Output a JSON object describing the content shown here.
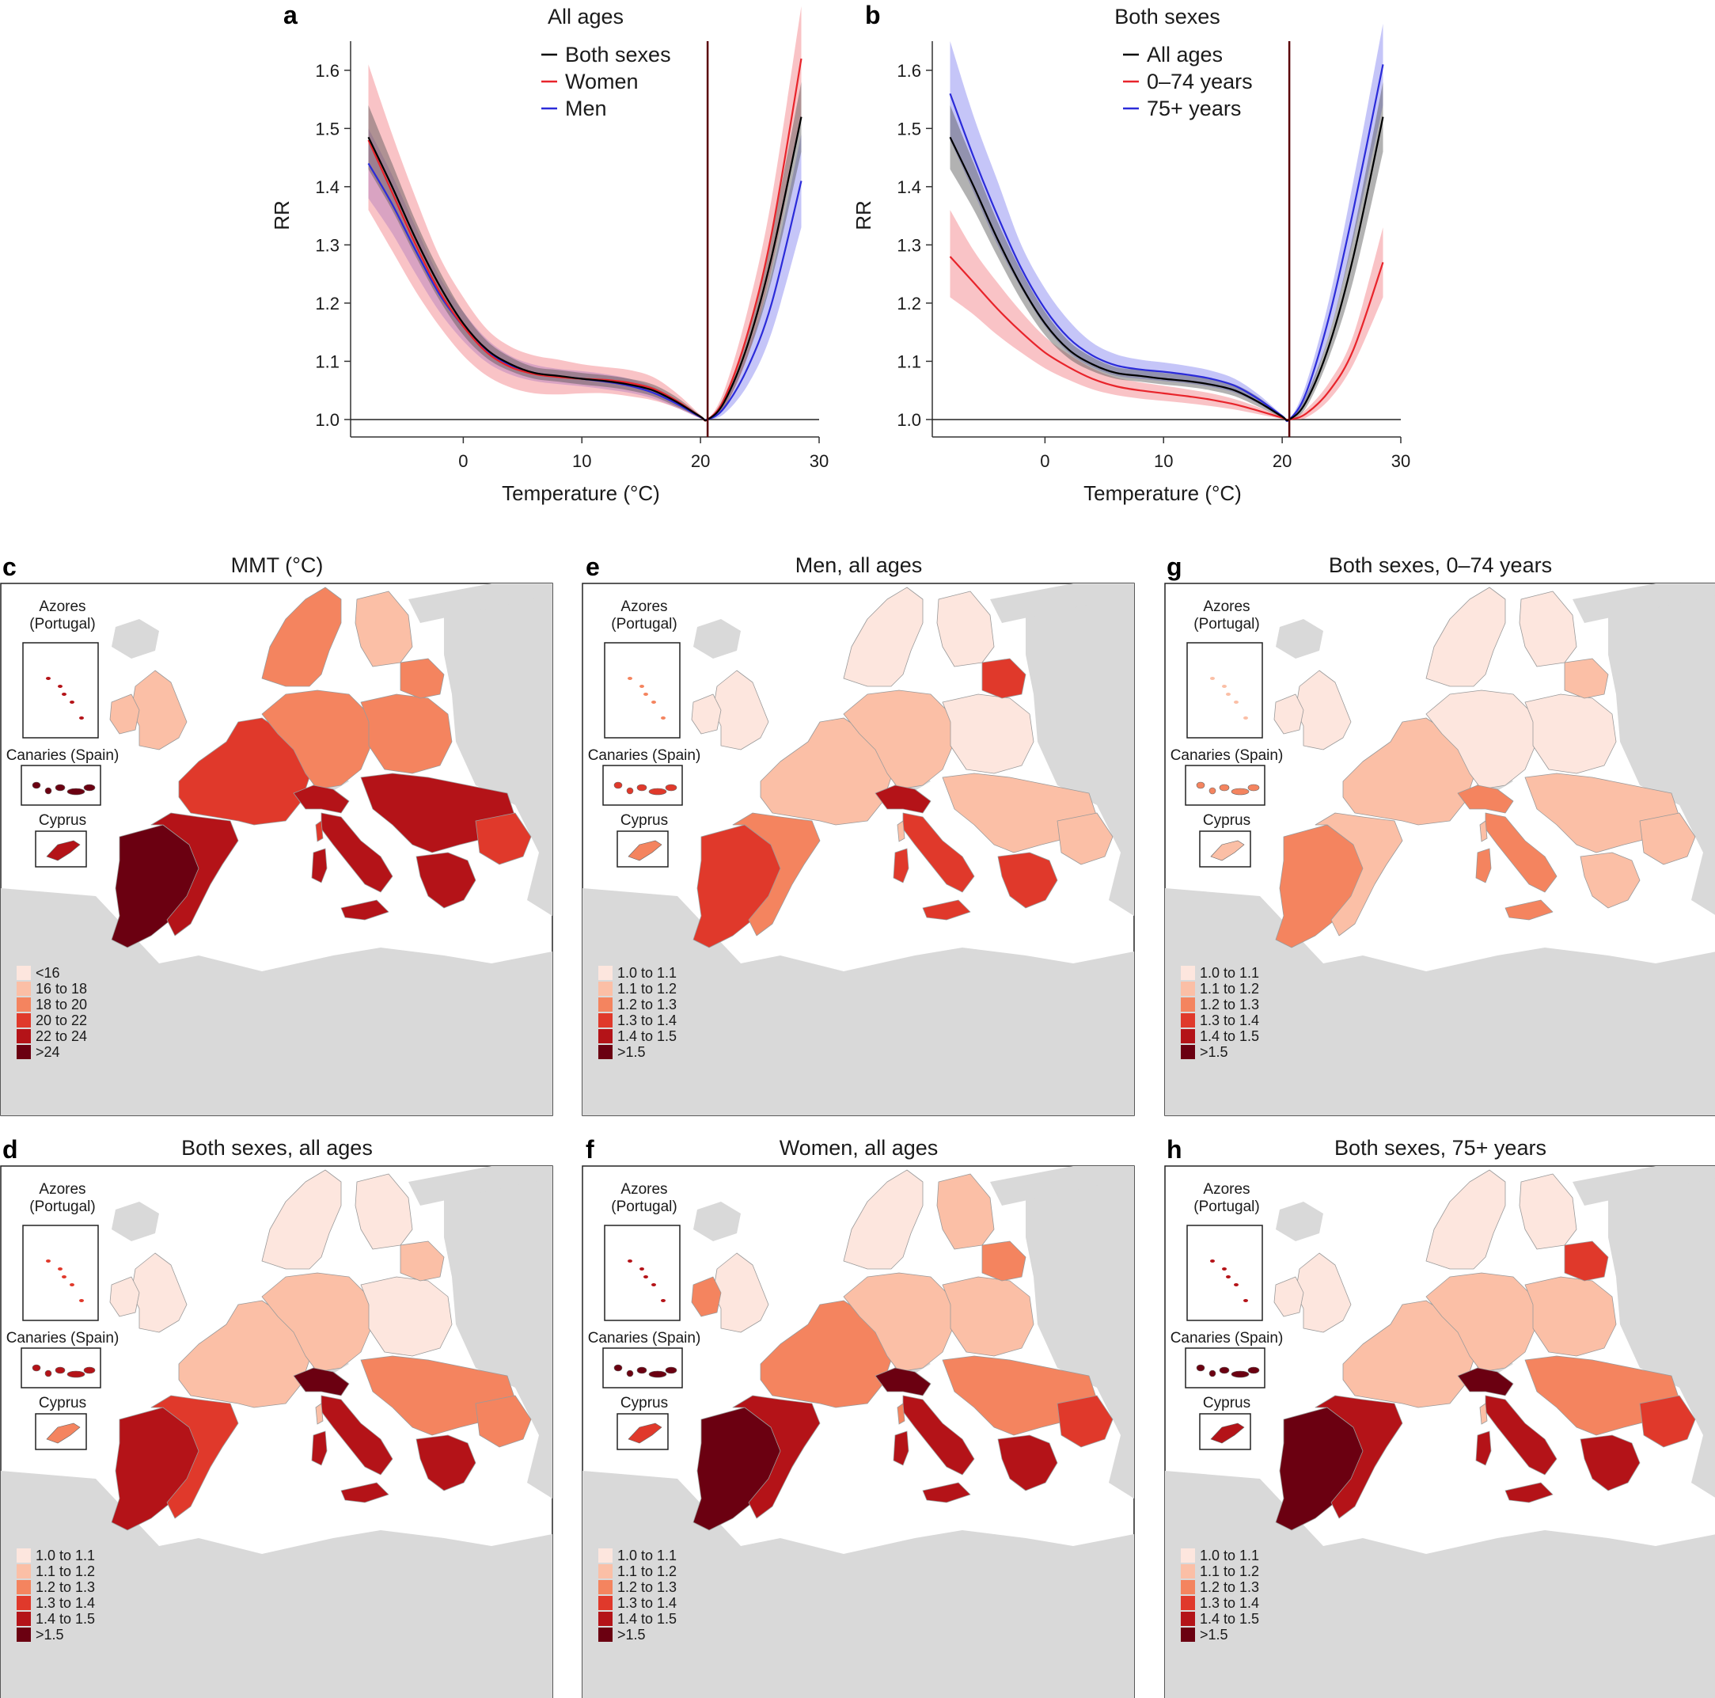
{
  "chart_data": [
    {
      "panel": "a",
      "type": "line",
      "title": "All ages",
      "xlabel": "Temperature (°C)",
      "ylabel": "RR",
      "xlim": [
        -9.5,
        30
      ],
      "ylim": [
        0.97,
        1.65
      ],
      "xticks": [
        0,
        10,
        20,
        30
      ],
      "yticks": [
        1.0,
        1.1,
        1.2,
        1.3,
        1.4,
        1.5,
        1.6
      ],
      "mmt_line": 20.6,
      "reference_line": 1.0,
      "legend_position": "top-center",
      "series": [
        {
          "name": "Both sexes",
          "color": "#000000",
          "band": "#555555",
          "x": [
            -8,
            -6,
            -4,
            -2,
            0,
            2,
            4,
            6,
            8,
            10,
            12,
            14,
            16,
            18,
            20,
            20.6,
            22,
            24,
            26,
            28.5
          ],
          "y": [
            1.485,
            1.4,
            1.31,
            1.23,
            1.165,
            1.12,
            1.095,
            1.08,
            1.075,
            1.07,
            1.066,
            1.06,
            1.05,
            1.03,
            1.005,
            1.0,
            1.03,
            1.13,
            1.28,
            1.52
          ],
          "lower": [
            1.43,
            1.36,
            1.28,
            1.205,
            1.145,
            1.105,
            1.083,
            1.07,
            1.065,
            1.06,
            1.056,
            1.05,
            1.04,
            1.022,
            1.003,
            1.0,
            1.02,
            1.11,
            1.24,
            1.46
          ],
          "upper": [
            1.54,
            1.44,
            1.34,
            1.255,
            1.185,
            1.135,
            1.107,
            1.09,
            1.085,
            1.08,
            1.076,
            1.07,
            1.06,
            1.038,
            1.007,
            1.0,
            1.04,
            1.15,
            1.32,
            1.58
          ]
        },
        {
          "name": "Women",
          "color": "#e8242b",
          "band": "#f27b80",
          "x": [
            -8,
            -6,
            -4,
            -2,
            0,
            2,
            4,
            6,
            8,
            10,
            12,
            14,
            16,
            18,
            20,
            20.6,
            22,
            24,
            26,
            28.5
          ],
          "y": [
            1.48,
            1.39,
            1.3,
            1.22,
            1.16,
            1.115,
            1.09,
            1.078,
            1.073,
            1.07,
            1.068,
            1.063,
            1.053,
            1.032,
            1.005,
            1.0,
            1.035,
            1.15,
            1.32,
            1.62
          ],
          "lower": [
            1.36,
            1.29,
            1.22,
            1.16,
            1.11,
            1.075,
            1.055,
            1.045,
            1.043,
            1.045,
            1.045,
            1.04,
            1.033,
            1.02,
            1.002,
            1.0,
            1.02,
            1.11,
            1.26,
            1.52
          ],
          "upper": [
            1.61,
            1.49,
            1.38,
            1.28,
            1.21,
            1.155,
            1.125,
            1.11,
            1.103,
            1.095,
            1.09,
            1.085,
            1.073,
            1.045,
            1.008,
            1.0,
            1.05,
            1.19,
            1.38,
            1.71
          ]
        },
        {
          "name": "Men",
          "color": "#2b2bd9",
          "band": "#7f7ff0",
          "x": [
            -8,
            -6,
            -4,
            -2,
            0,
            2,
            4,
            6,
            8,
            10,
            12,
            14,
            16,
            18,
            20,
            20.6,
            22,
            24,
            26,
            28.5
          ],
          "y": [
            1.44,
            1.37,
            1.29,
            1.215,
            1.16,
            1.118,
            1.093,
            1.08,
            1.074,
            1.07,
            1.065,
            1.058,
            1.046,
            1.027,
            1.004,
            1.0,
            1.02,
            1.09,
            1.2,
            1.41
          ],
          "lower": [
            1.38,
            1.32,
            1.25,
            1.185,
            1.135,
            1.098,
            1.077,
            1.066,
            1.061,
            1.057,
            1.052,
            1.046,
            1.036,
            1.02,
            1.002,
            1.0,
            1.01,
            1.06,
            1.15,
            1.33
          ],
          "upper": [
            1.5,
            1.42,
            1.33,
            1.245,
            1.185,
            1.138,
            1.109,
            1.094,
            1.087,
            1.083,
            1.078,
            1.07,
            1.056,
            1.034,
            1.006,
            1.0,
            1.03,
            1.12,
            1.25,
            1.49
          ]
        }
      ]
    },
    {
      "panel": "b",
      "type": "line",
      "title": "Both sexes",
      "xlabel": "Temperature (°C)",
      "ylabel": "RR",
      "xlim": [
        -9.5,
        30
      ],
      "ylim": [
        0.97,
        1.65
      ],
      "xticks": [
        0,
        10,
        20,
        30
      ],
      "yticks": [
        1.0,
        1.1,
        1.2,
        1.3,
        1.4,
        1.5,
        1.6
      ],
      "mmt_line": 20.6,
      "reference_line": 1.0,
      "legend_position": "top-center",
      "series": [
        {
          "name": "All ages",
          "color": "#000000",
          "band": "#555555",
          "x": [
            -8,
            -6,
            -4,
            -2,
            0,
            2,
            4,
            6,
            8,
            10,
            12,
            14,
            16,
            18,
            20,
            20.6,
            22,
            24,
            26,
            28.5
          ],
          "y": [
            1.485,
            1.4,
            1.31,
            1.23,
            1.165,
            1.12,
            1.095,
            1.08,
            1.075,
            1.07,
            1.066,
            1.06,
            1.05,
            1.03,
            1.005,
            1.0,
            1.03,
            1.13,
            1.28,
            1.52
          ],
          "lower": [
            1.43,
            1.36,
            1.28,
            1.205,
            1.145,
            1.105,
            1.083,
            1.07,
            1.065,
            1.06,
            1.056,
            1.05,
            1.04,
            1.022,
            1.003,
            1.0,
            1.02,
            1.11,
            1.24,
            1.46
          ],
          "upper": [
            1.54,
            1.44,
            1.34,
            1.255,
            1.185,
            1.135,
            1.107,
            1.09,
            1.085,
            1.08,
            1.076,
            1.07,
            1.06,
            1.038,
            1.007,
            1.0,
            1.04,
            1.15,
            1.32,
            1.58
          ]
        },
        {
          "name": "0–74 years",
          "color": "#e8242b",
          "band": "#f27b80",
          "x": [
            -8,
            -6,
            -4,
            -2,
            0,
            2,
            4,
            6,
            8,
            10,
            12,
            14,
            16,
            18,
            20,
            20.6,
            22,
            24,
            26,
            28.5
          ],
          "y": [
            1.28,
            1.235,
            1.19,
            1.15,
            1.115,
            1.09,
            1.07,
            1.057,
            1.05,
            1.045,
            1.04,
            1.034,
            1.026,
            1.015,
            1.003,
            1.0,
            1.01,
            1.05,
            1.12,
            1.27
          ],
          "lower": [
            1.21,
            1.18,
            1.145,
            1.115,
            1.088,
            1.068,
            1.052,
            1.042,
            1.036,
            1.032,
            1.028,
            1.023,
            1.017,
            1.009,
            1.001,
            1.0,
            1.003,
            1.035,
            1.095,
            1.21
          ],
          "upper": [
            1.36,
            1.29,
            1.235,
            1.185,
            1.142,
            1.112,
            1.088,
            1.072,
            1.064,
            1.058,
            1.052,
            1.045,
            1.035,
            1.021,
            1.005,
            1.0,
            1.017,
            1.065,
            1.145,
            1.33
          ]
        },
        {
          "name": "75+ years",
          "color": "#2b2bd9",
          "band": "#7f7ff0",
          "x": [
            -8,
            -6,
            -4,
            -2,
            0,
            2,
            4,
            6,
            8,
            10,
            12,
            14,
            16,
            18,
            20,
            20.6,
            22,
            24,
            26,
            28.5
          ],
          "y": [
            1.56,
            1.45,
            1.35,
            1.26,
            1.19,
            1.14,
            1.11,
            1.093,
            1.086,
            1.082,
            1.077,
            1.07,
            1.058,
            1.035,
            1.006,
            1.0,
            1.045,
            1.18,
            1.36,
            1.61
          ],
          "lower": [
            1.48,
            1.39,
            1.3,
            1.225,
            1.16,
            1.115,
            1.09,
            1.075,
            1.07,
            1.066,
            1.062,
            1.056,
            1.046,
            1.027,
            1.004,
            1.0,
            1.03,
            1.15,
            1.31,
            1.54
          ],
          "upper": [
            1.65,
            1.52,
            1.41,
            1.3,
            1.225,
            1.17,
            1.132,
            1.112,
            1.103,
            1.098,
            1.092,
            1.084,
            1.07,
            1.043,
            1.008,
            1.0,
            1.06,
            1.21,
            1.41,
            1.68
          ]
        }
      ]
    },
    {
      "panel": "c",
      "type": "heatmap",
      "title": "MMT (°C)",
      "legend": [
        "<16",
        "16 to 18",
        "18 to 20",
        "20 to 22",
        "22 to 24",
        ">24"
      ],
      "legend_colors": [
        "#fde6de",
        "#fbbfa6",
        "#f4845f",
        "#e0392b",
        "#b41318",
        "#6b0011"
      ],
      "region_class": {
        "iberia_sw": 5,
        "iberia_e": 4,
        "france": 3,
        "uk": 1,
        "ireland": 1,
        "central": 2,
        "poland": 2,
        "baltics": 2,
        "scandinavia": 2,
        "finland": 1,
        "italy_n": 4,
        "italy_s": 4,
        "balkans": 4,
        "greece": 4,
        "turkey_region": 3,
        "cyprus": 4
      }
    },
    {
      "panel": "d",
      "type": "heatmap",
      "title": "Both sexes, all ages",
      "legend": [
        "1.0 to 1.1",
        "1.1 to 1.2",
        "1.2 to 1.3",
        "1.3 to 1.4",
        "1.4 to 1.5",
        ">1.5"
      ],
      "legend_colors": [
        "#fde6de",
        "#fbbfa6",
        "#f4845f",
        "#e0392b",
        "#b41318",
        "#6b0011"
      ],
      "region_class": {
        "iberia_sw": 4,
        "iberia_e": 3,
        "france": 1,
        "uk": 0,
        "ireland": 0,
        "central": 1,
        "poland": 0,
        "baltics": 1,
        "scandinavia": 0,
        "finland": 0,
        "italy_n": 5,
        "italy_s": 4,
        "balkans": 2,
        "greece": 4,
        "turkey_region": 2,
        "cyprus": 2
      }
    },
    {
      "panel": "e",
      "type": "heatmap",
      "title": "Men, all ages",
      "legend": [
        "1.0 to 1.1",
        "1.1 to 1.2",
        "1.2 to 1.3",
        "1.3 to 1.4",
        "1.4 to 1.5",
        ">1.5"
      ],
      "legend_colors": [
        "#fde6de",
        "#fbbfa6",
        "#f4845f",
        "#e0392b",
        "#b41318",
        "#6b0011"
      ],
      "region_class": {
        "iberia_sw": 3,
        "iberia_e": 2,
        "france": 1,
        "uk": 0,
        "ireland": 0,
        "central": 1,
        "poland": 0,
        "baltics": 3,
        "scandinavia": 0,
        "finland": 0,
        "italy_n": 4,
        "italy_s": 3,
        "balkans": 1,
        "greece": 3,
        "turkey_region": 1,
        "cyprus": 2
      }
    },
    {
      "panel": "f",
      "type": "heatmap",
      "title": "Women, all ages",
      "legend": [
        "1.0 to 1.1",
        "1.1 to 1.2",
        "1.2 to 1.3",
        "1.3 to 1.4",
        "1.4 to 1.5",
        ">1.5"
      ],
      "legend_colors": [
        "#fde6de",
        "#fbbfa6",
        "#f4845f",
        "#e0392b",
        "#b41318",
        "#6b0011"
      ],
      "region_class": {
        "iberia_sw": 5,
        "iberia_e": 4,
        "france": 2,
        "uk": 0,
        "ireland": 2,
        "central": 1,
        "poland": 1,
        "baltics": 2,
        "scandinavia": 0,
        "finland": 1,
        "italy_n": 5,
        "italy_s": 4,
        "balkans": 2,
        "greece": 4,
        "turkey_region": 3,
        "cyprus": 3
      }
    },
    {
      "panel": "g",
      "type": "heatmap",
      "title": "Both sexes, 0–74 years",
      "legend": [
        "1.0 to 1.1",
        "1.1 to 1.2",
        "1.2 to 1.3",
        "1.3 to 1.4",
        "1.4 to 1.5",
        ">1.5"
      ],
      "legend_colors": [
        "#fde6de",
        "#fbbfa6",
        "#f4845f",
        "#e0392b",
        "#b41318",
        "#6b0011"
      ],
      "region_class": {
        "iberia_sw": 2,
        "iberia_e": 1,
        "france": 1,
        "uk": 0,
        "ireland": 0,
        "central": 0,
        "poland": 0,
        "baltics": 1,
        "scandinavia": 0,
        "finland": 0,
        "italy_n": 2,
        "italy_s": 2,
        "balkans": 1,
        "greece": 1,
        "turkey_region": 1,
        "cyprus": 1
      }
    },
    {
      "panel": "h",
      "type": "heatmap",
      "title": "Both sexes, 75+ years",
      "legend": [
        "1.0 to 1.1",
        "1.1 to 1.2",
        "1.2 to 1.3",
        "1.3 to 1.4",
        "1.4 to 1.5",
        ">1.5"
      ],
      "legend_colors": [
        "#fde6de",
        "#fbbfa6",
        "#f4845f",
        "#e0392b",
        "#b41318",
        "#6b0011"
      ],
      "region_class": {
        "iberia_sw": 5,
        "iberia_e": 4,
        "france": 1,
        "uk": 0,
        "ireland": 0,
        "central": 1,
        "poland": 1,
        "baltics": 3,
        "scandinavia": 0,
        "finland": 0,
        "italy_n": 5,
        "italy_s": 4,
        "balkans": 2,
        "greece": 4,
        "turkey_region": 3,
        "cyprus": 4
      }
    }
  ],
  "map_insets": {
    "azores": "Azores\n(Portugal)",
    "azores_line1": "Azores",
    "azores_line2": "(Portugal)",
    "canaries": "Canaries (Spain)",
    "cyprus": "Cyprus"
  },
  "colors": {
    "nodata": "#d9d9d9",
    "sea": "#ffffff",
    "border": "#9a9a9a"
  }
}
